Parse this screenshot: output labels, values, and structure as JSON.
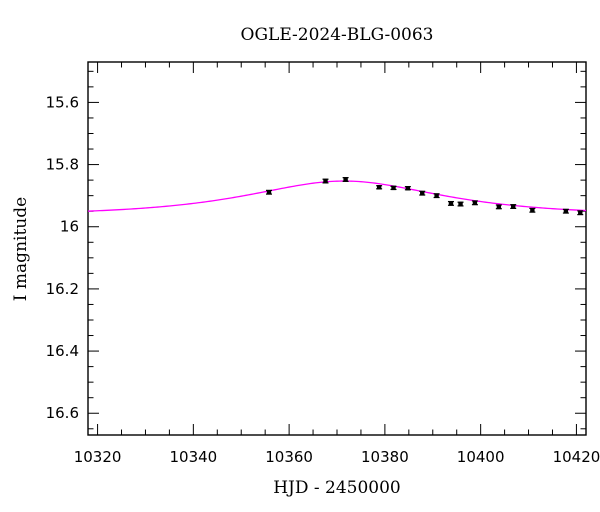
{
  "chart_data": {
    "type": "scatter",
    "title": "OGLE-2024-BLG-0063",
    "xlabel": "HJD - 2450000",
    "ylabel": "I magnitude",
    "xlim": [
      10318,
      10422
    ],
    "ylim": [
      15.47,
      16.67
    ],
    "y_inverted": true,
    "grid": false,
    "legend": "none",
    "x_ticks": [
      10320,
      10340,
      10360,
      10380,
      10400,
      10420
    ],
    "x_tick_labels": [
      "10320",
      "10340",
      "10360",
      "10380",
      "10400",
      "10420"
    ],
    "y_ticks": [
      15.6,
      15.8,
      16.0,
      16.2,
      16.4,
      16.6
    ],
    "y_tick_labels": [
      "15.6",
      "15.8",
      "16",
      "16.2",
      "16.4",
      "16.6"
    ],
    "x_minor_step": 5,
    "y_minor_step": 0.05,
    "series": [
      {
        "kind": "points",
        "color": "#000000",
        "x": [
          10355.8,
          10367.6,
          10371.8,
          10378.8,
          10381.8,
          10384.8,
          10387.8,
          10390.8,
          10393.8,
          10395.8,
          10398.8,
          10403.8,
          10406.8,
          10410.8,
          10417.8,
          10420.8
        ],
        "y": [
          15.889,
          15.853,
          15.848,
          15.873,
          15.875,
          15.876,
          15.892,
          15.9,
          15.925,
          15.927,
          15.923,
          15.936,
          15.935,
          15.947,
          15.95,
          15.955
        ],
        "yerr": [
          0.006,
          0.006,
          0.006,
          0.005,
          0.005,
          0.005,
          0.006,
          0.006,
          0.006,
          0.006,
          0.006,
          0.006,
          0.006,
          0.006,
          0.006,
          0.006
        ]
      },
      {
        "kind": "model",
        "color": "#ff00ff",
        "model": {
          "baseline": 15.963,
          "t0": 10371.5,
          "tE": 27.5,
          "peak_mag": 15.853,
          "t_start": 10318,
          "t_end": 10422
        }
      }
    ]
  }
}
